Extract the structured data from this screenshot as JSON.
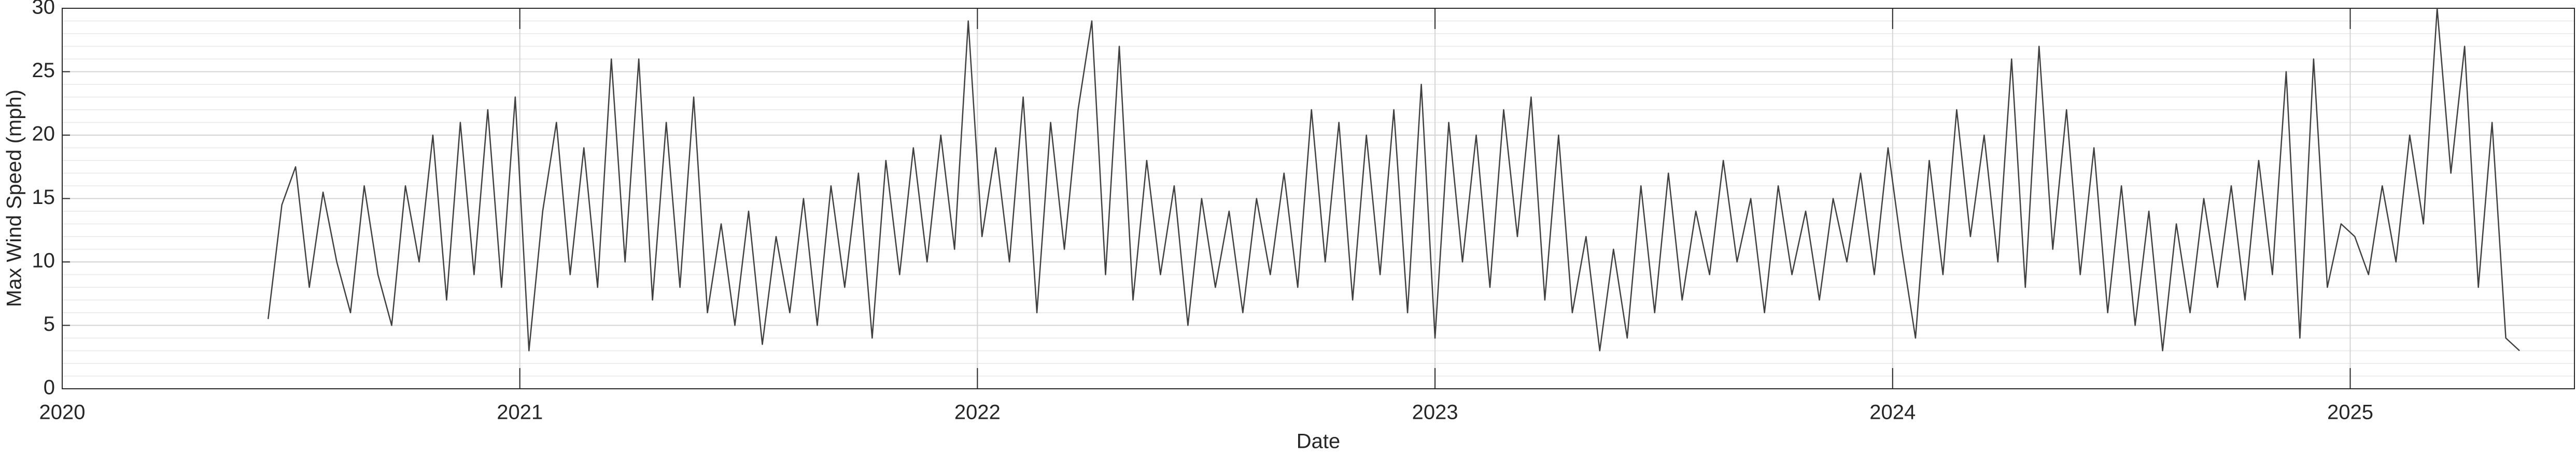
{
  "chart_data": {
    "type": "line",
    "xlabel": "Date",
    "ylabel": "Max Wind Speed (mph)",
    "x": [
      2020.45,
      2020.48,
      2020.51,
      2020.54,
      2020.57,
      2020.6,
      2020.63,
      2020.66,
      2020.69,
      2020.72,
      2020.75,
      2020.78,
      2020.81,
      2020.84,
      2020.87,
      2020.9,
      2020.93,
      2020.96,
      2020.99,
      2021.02,
      2021.05,
      2021.08,
      2021.11,
      2021.14,
      2021.17,
      2021.2,
      2021.23,
      2021.26,
      2021.29,
      2021.32,
      2021.35,
      2021.38,
      2021.41,
      2021.44,
      2021.47,
      2021.5,
      2021.53,
      2021.56,
      2021.59,
      2021.62,
      2021.65,
      2021.68,
      2021.71,
      2021.74,
      2021.77,
      2021.8,
      2021.83,
      2021.86,
      2021.89,
      2021.92,
      2021.95,
      2021.98,
      2022.01,
      2022.04,
      2022.07,
      2022.1,
      2022.13,
      2022.16,
      2022.19,
      2022.22,
      2022.25,
      2022.28,
      2022.31,
      2022.34,
      2022.37,
      2022.4,
      2022.43,
      2022.46,
      2022.49,
      2022.52,
      2022.55,
      2022.58,
      2022.61,
      2022.64,
      2022.67,
      2022.7,
      2022.73,
      2022.76,
      2022.79,
      2022.82,
      2022.85,
      2022.88,
      2022.91,
      2022.94,
      2022.97,
      2023.0,
      2023.03,
      2023.06,
      2023.09,
      2023.12,
      2023.15,
      2023.18,
      2023.21,
      2023.24,
      2023.27,
      2023.3,
      2023.33,
      2023.36,
      2023.39,
      2023.42,
      2023.45,
      2023.48,
      2023.51,
      2023.54,
      2023.57,
      2023.6,
      2023.63,
      2023.66,
      2023.69,
      2023.72,
      2023.75,
      2023.78,
      2023.81,
      2023.84,
      2023.87,
      2023.9,
      2023.93,
      2023.96,
      2023.99,
      2024.02,
      2024.05,
      2024.08,
      2024.11,
      2024.14,
      2024.17,
      2024.2,
      2024.23,
      2024.26,
      2024.29,
      2024.32,
      2024.35,
      2024.38,
      2024.41,
      2024.44,
      2024.47,
      2024.5,
      2024.53,
      2024.56,
      2024.59,
      2024.62,
      2024.65,
      2024.68,
      2024.71,
      2024.74,
      2024.77,
      2024.8,
      2024.83,
      2024.86,
      2024.89,
      2024.92,
      2024.95,
      2024.98,
      2025.01,
      2025.04,
      2025.07,
      2025.1,
      2025.13,
      2025.16,
      2025.19,
      2025.22,
      2025.25,
      2025.28,
      2025.31,
      2025.34,
      2025.37
    ],
    "series": [
      {
        "color": "#404040",
        "values": [
          5.5,
          14.5,
          17.5,
          8,
          15.5,
          10,
          6,
          16,
          9,
          5,
          16,
          10,
          20,
          7,
          21,
          9,
          22,
          8,
          23,
          3,
          14,
          21,
          9,
          19,
          8,
          26,
          10,
          26,
          7,
          21,
          8,
          23,
          6,
          13,
          5,
          14,
          3.5,
          12,
          6,
          15,
          5,
          16,
          8,
          17,
          4,
          18,
          9,
          19,
          10,
          20,
          11,
          29,
          12,
          19,
          10,
          23,
          6,
          21,
          11,
          22,
          29,
          9,
          27,
          7,
          18,
          9,
          16,
          5,
          15,
          8,
          14,
          6,
          15,
          9,
          17,
          8,
          22,
          10,
          21,
          7,
          20,
          9,
          22,
          6,
          24,
          4,
          21,
          10,
          20,
          8,
          22,
          12,
          23,
          7,
          20,
          6,
          12,
          3,
          11,
          4,
          16,
          6,
          17,
          7,
          14,
          9,
          18,
          10,
          15,
          6,
          16,
          9,
          14,
          7,
          15,
          10,
          17,
          9,
          19,
          11,
          4,
          18,
          9,
          22,
          12,
          20,
          10,
          26,
          8,
          27,
          11,
          22,
          9,
          19,
          6,
          16,
          5,
          14,
          3,
          13,
          6,
          15,
          8,
          16,
          7,
          18,
          9,
          25,
          4,
          26,
          8,
          13,
          12,
          9,
          16,
          10,
          20,
          13,
          30,
          17,
          27,
          8,
          21,
          4,
          3
        ]
      }
    ],
    "xlim": [
      2020,
      2025.49
    ],
    "xticks": [
      2020,
      2021,
      2022,
      2023,
      2024,
      2025
    ],
    "ylim": [
      0,
      30
    ],
    "yticks": [
      0,
      5,
      10,
      15,
      20,
      25,
      30
    ],
    "yminorticks": [
      1,
      2,
      3,
      4,
      6,
      7,
      8,
      9,
      11,
      12,
      13,
      14,
      16,
      17,
      18,
      19,
      21,
      22,
      23,
      24,
      26,
      27,
      28,
      29
    ],
    "grid": true
  }
}
